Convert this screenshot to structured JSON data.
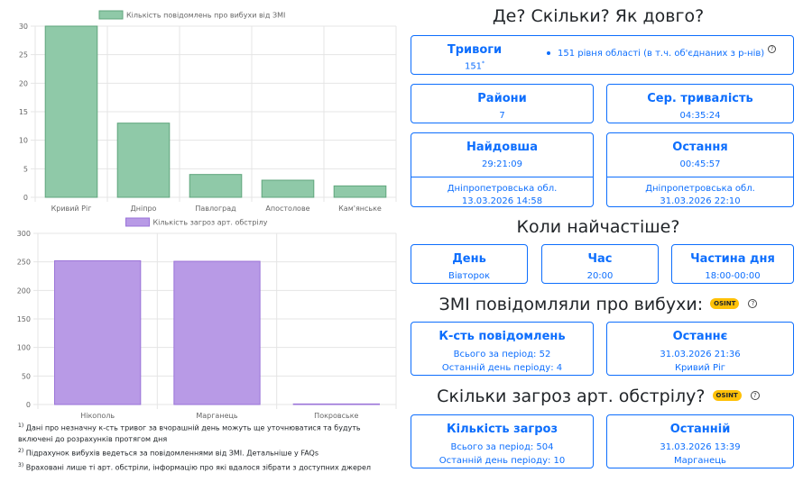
{
  "colors": {
    "accent": "#0d6efd",
    "green_fill": "#8fc9a8",
    "green_stroke": "#5fa57c",
    "purple_fill": "#b89ae6",
    "purple_stroke": "#9a73d8",
    "osint_badge": "#ffc107"
  },
  "chart_data": [
    {
      "type": "bar",
      "legend": "Кількість повідомлень про вибухи від ЗМІ",
      "categories": [
        "Кривий Ріг",
        "Дніпро",
        "Павлоград",
        "Апостолове",
        "Кам'янське"
      ],
      "values": [
        30,
        13,
        4,
        3,
        2
      ],
      "ylim": [
        0,
        30
      ],
      "yticks": [
        0,
        5,
        10,
        15,
        20,
        25,
        30
      ],
      "grid": true
    },
    {
      "type": "bar",
      "legend": "Кількість загроз арт. обстрілу",
      "categories": [
        "Нікополь",
        "Марганець",
        "Покровське"
      ],
      "values": [
        252,
        251,
        1
      ],
      "ylim": [
        0,
        300
      ],
      "yticks": [
        0,
        50,
        100,
        150,
        200,
        250,
        300
      ],
      "grid": true
    }
  ],
  "footnotes": {
    "n1": "1)",
    "t1": " Дані про незначну к-сть тривог за вчорашній день можуть ще уточнюватися та будуть включені до розрахунків протягом дня",
    "n2": "2)",
    "t2": " Підрахунок вибухів ведеться за повідомленнями від ЗМІ. Детальніше у FAQs",
    "n3": "3)",
    "t3": " Враховані лише ті арт. обстріли, інформацію про які вдалося зібрати з доступних джерел"
  },
  "where": {
    "title": "Де? Скільки? Як довго?",
    "alarms": {
      "label": "Тривоги",
      "value": "151",
      "sup": "*",
      "detail": "151 рівня області (в т.ч. об'єднаних з р-нів)",
      "help_icon": "?"
    },
    "districts": {
      "label": "Райони",
      "value": "7"
    },
    "avg_duration": {
      "label": "Сер. тривалість",
      "value": "04:35:24"
    },
    "longest": {
      "label": "Найдовша",
      "value": "29:21:09",
      "region": "Дніпропетровська обл.",
      "date": "13.03.2026 14:58"
    },
    "last": {
      "label": "Остання",
      "value": "00:45:57",
      "region": "Дніпропетровська обл.",
      "date": "31.03.2026 22:10"
    }
  },
  "when": {
    "title": "Коли найчастіше?",
    "day": {
      "label": "День",
      "value": "Вівторок"
    },
    "hour": {
      "label": "Час",
      "value": "20:00"
    },
    "part": {
      "label": "Частина дня",
      "value": "18:00-00:00"
    }
  },
  "media": {
    "title": "ЗМІ повідомляли про вибухи:",
    "badge": "OSINT",
    "help_icon": "?",
    "count": {
      "label": "К-сть повідомлень",
      "total": "Всього за період: 52",
      "last_day": "Останній день періоду: 4"
    },
    "last": {
      "label": "Останнє",
      "date": "31.03.2026 21:36",
      "place": "Кривий Ріг"
    }
  },
  "artillery": {
    "title": "Скільки загроз арт. обстрілу?",
    "badge": "OSINT",
    "help_icon": "?",
    "count": {
      "label": "Кількість загроз",
      "total": "Всього за період: 504",
      "last_day": "Останній день періоду: 10"
    },
    "last": {
      "label": "Останній",
      "date": "31.03.2026 13:39",
      "place": "Марганець"
    }
  }
}
